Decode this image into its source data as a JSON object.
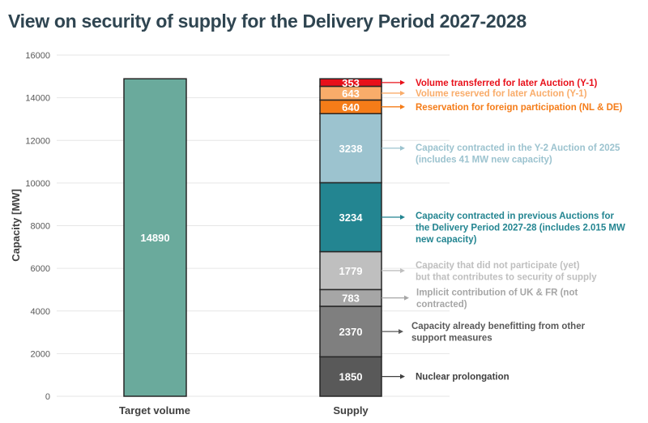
{
  "chart_data": {
    "type": "bar",
    "title": "View on security of supply for the Delivery Period 2027-2028",
    "xlabel": "",
    "ylabel": "Capacity [MW]",
    "ylim": [
      0,
      16000
    ],
    "yticks": [
      0,
      2000,
      4000,
      6000,
      8000,
      10000,
      12000,
      14000,
      16000
    ],
    "grid": true,
    "categories": [
      "Target volume",
      "Supply"
    ],
    "target": {
      "name": "Target volume",
      "value": 14890,
      "color": "#6aaa9c"
    },
    "supply_stack": [
      {
        "value": 1850,
        "label": "Nuclear prolongation",
        "color": "#595959",
        "text_color": "#404040"
      },
      {
        "value": 2370,
        "label": "Capacity already benefitting from other support measures",
        "color": "#7f7f7f",
        "text_color": "#595959"
      },
      {
        "value": 783,
        "label": "Implicit contribution of UK & FR (not contracted)",
        "color": "#a6a6a6",
        "text_color": "#a6a6a6"
      },
      {
        "value": 1779,
        "label": "Capacity that did not participate (yet) but that contributes to security of supply",
        "color": "#bfbfbf",
        "text_color": "#bfbfbf"
      },
      {
        "value": 3234,
        "label": "Capacity contracted in previous Auctions for the Delivery Period 2027-28 (includes 2.015 MW new capacity)",
        "color": "#238591",
        "text_color": "#238591"
      },
      {
        "value": 3238,
        "label": "Capacity contracted in the Y-2 Auction of 2025 (includes 41 MW new capacity)",
        "color": "#9cc3cf",
        "text_color": "#9cc3cf"
      },
      {
        "value": 640,
        "label": "Reservation for foreign participation (NL & DE)",
        "color": "#f57c18",
        "text_color": "#f57c18"
      },
      {
        "value": 643,
        "label": "Volume reserved for later Auction (Y-1)",
        "color": "#f9ac6a",
        "text_color": "#f9ac6a"
      },
      {
        "value": 353,
        "label": "Volume transferred for later Auction (Y-1)",
        "color": "#e8101a",
        "text_color": "#e8101a"
      }
    ]
  }
}
